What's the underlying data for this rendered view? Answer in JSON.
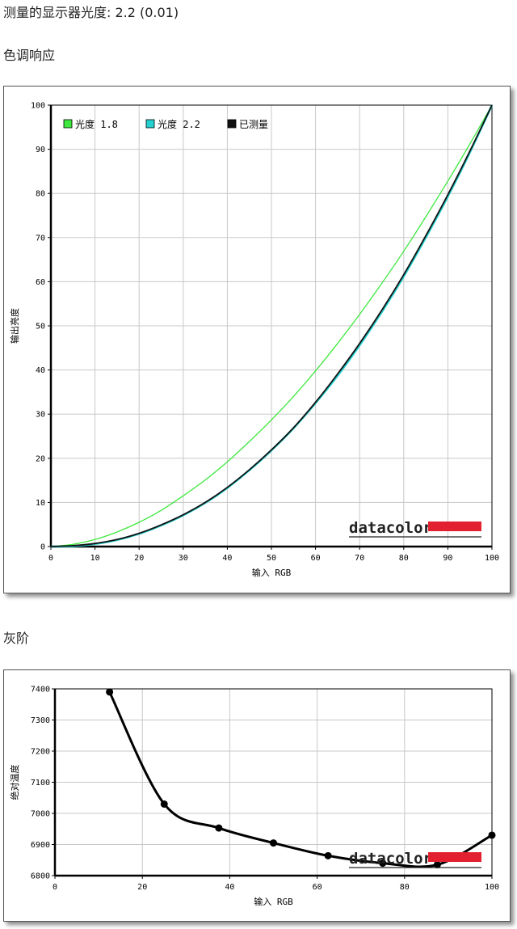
{
  "headings": {
    "gamma_measured": "测量的显示器光度:  2.2 (0.01)",
    "tone_response": "色调响应",
    "gray_scale": "灰阶"
  },
  "brand": {
    "name": "datacolor",
    "bar_color": "#e3202f"
  },
  "colors": {
    "series_18": "#3ee83e",
    "series_22": "#25d0d0",
    "series_measured": "#111111",
    "grid": "#c8c8c8"
  },
  "chart_data": [
    {
      "type": "line",
      "xlabel": "输入 RGB",
      "ylabel": "输出亮度",
      "xlim": [
        0,
        100
      ],
      "ylim": [
        0,
        100
      ],
      "xticks": [
        "0",
        "10",
        "20",
        "30",
        "40",
        "50",
        "60",
        "70",
        "80",
        "90",
        "100"
      ],
      "yticks": [
        "0",
        "10",
        "20",
        "30",
        "40",
        "50",
        "60",
        "70",
        "80",
        "90",
        "100"
      ],
      "grid": true,
      "legend_position": "top-left",
      "x": [
        0,
        5,
        10,
        15,
        20,
        25,
        30,
        35,
        40,
        45,
        50,
        55,
        60,
        65,
        70,
        75,
        80,
        85,
        90,
        95,
        100
      ],
      "series": [
        {
          "name": "光度 1.8",
          "color": "#3ee83e",
          "values": [
            0,
            0.5,
            1.6,
            3.3,
            5.5,
            8.2,
            11.5,
            15.1,
            19.2,
            23.8,
            28.7,
            34.0,
            39.8,
            46.0,
            52.6,
            59.6,
            66.9,
            74.7,
            82.8,
            91.2,
            100
          ]
        },
        {
          "name": "光度 2.2",
          "color": "#25d0d0",
          "values": [
            0,
            0.1,
            0.6,
            1.5,
            2.9,
            4.8,
            7.1,
            9.9,
            13.3,
            17.3,
            21.8,
            26.8,
            32.5,
            38.7,
            45.6,
            53.1,
            61.2,
            70.0,
            79.3,
            89.3,
            100
          ]
        },
        {
          "name": "已测量",
          "color": "#111111",
          "values": [
            0,
            0.2,
            0.7,
            1.6,
            3.0,
            4.9,
            7.2,
            10.0,
            13.4,
            17.4,
            21.9,
            26.9,
            32.7,
            39.1,
            46.0,
            53.5,
            61.6,
            70.4,
            79.7,
            89.6,
            100
          ]
        }
      ]
    },
    {
      "type": "line",
      "xlabel": "输入 RGB",
      "ylabel": "绝对温度",
      "xlim": [
        0,
        100
      ],
      "ylim": [
        6800,
        7400
      ],
      "xticks": [
        "0",
        "20",
        "40",
        "60",
        "80",
        "100"
      ],
      "yticks": [
        "6800",
        "6900",
        "7000",
        "7100",
        "7200",
        "7300",
        "7400"
      ],
      "grid": true,
      "series": [
        {
          "name": "",
          "color": "#000000",
          "points": [
            [
              12.5,
              7390
            ],
            [
              25,
              7030
            ],
            [
              37.5,
              6953
            ],
            [
              50,
              6905
            ],
            [
              62.5,
              6864
            ],
            [
              75,
              6840
            ],
            [
              87.5,
              6835
            ],
            [
              100,
              6930
            ]
          ]
        }
      ]
    }
  ]
}
